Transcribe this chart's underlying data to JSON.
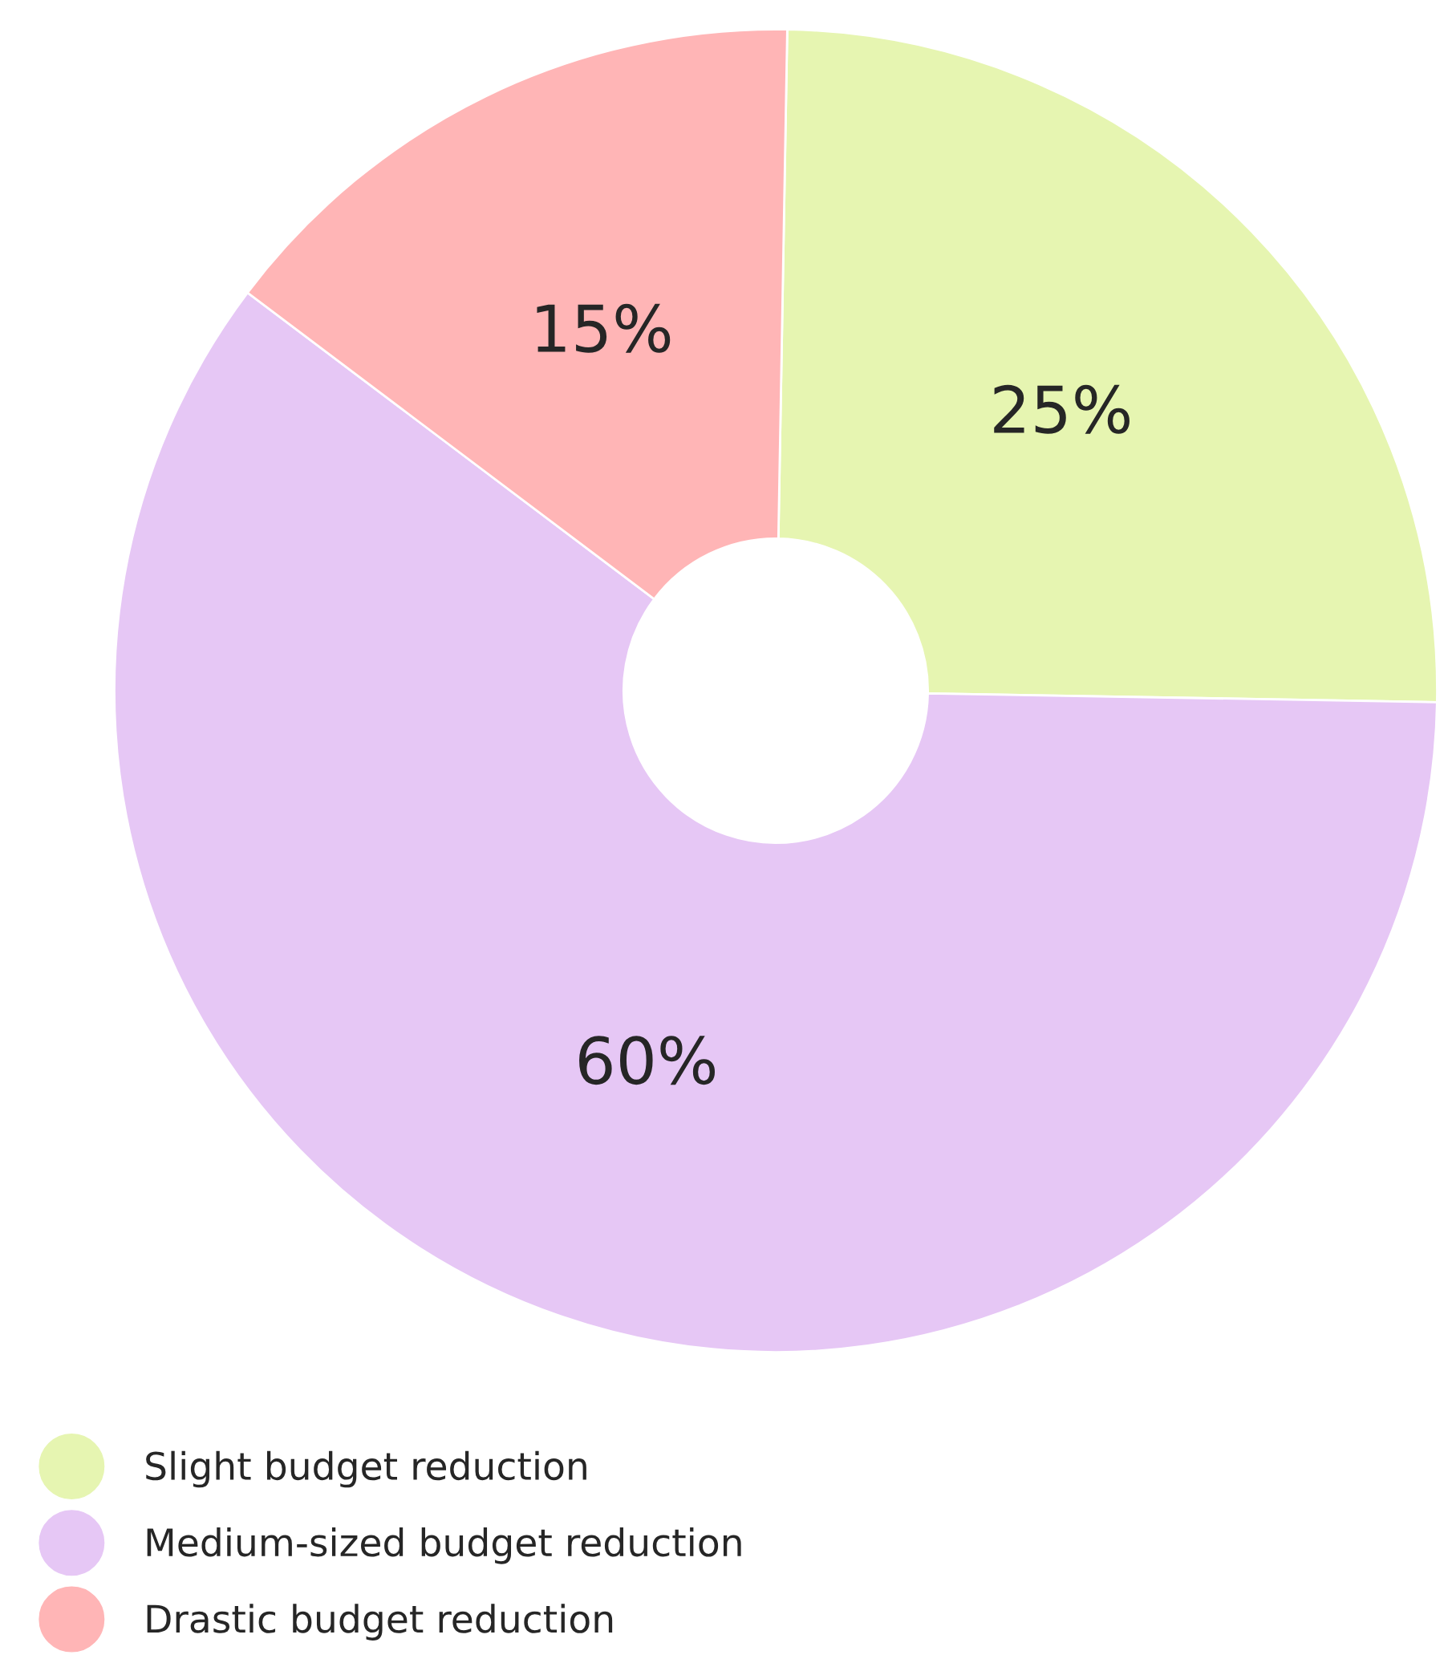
{
  "chart_data": {
    "type": "donut",
    "categories": [
      "Slight budget reduction",
      "Medium-sized budget reduction",
      "Drastic budget reduction"
    ],
    "values": [
      25,
      60,
      15
    ],
    "colors": [
      "#e6f5b1",
      "#e6c7f5",
      "#ffb5b6"
    ],
    "value_labels": [
      "25%",
      "60%",
      "15%"
    ],
    "legend": "bottom left"
  }
}
